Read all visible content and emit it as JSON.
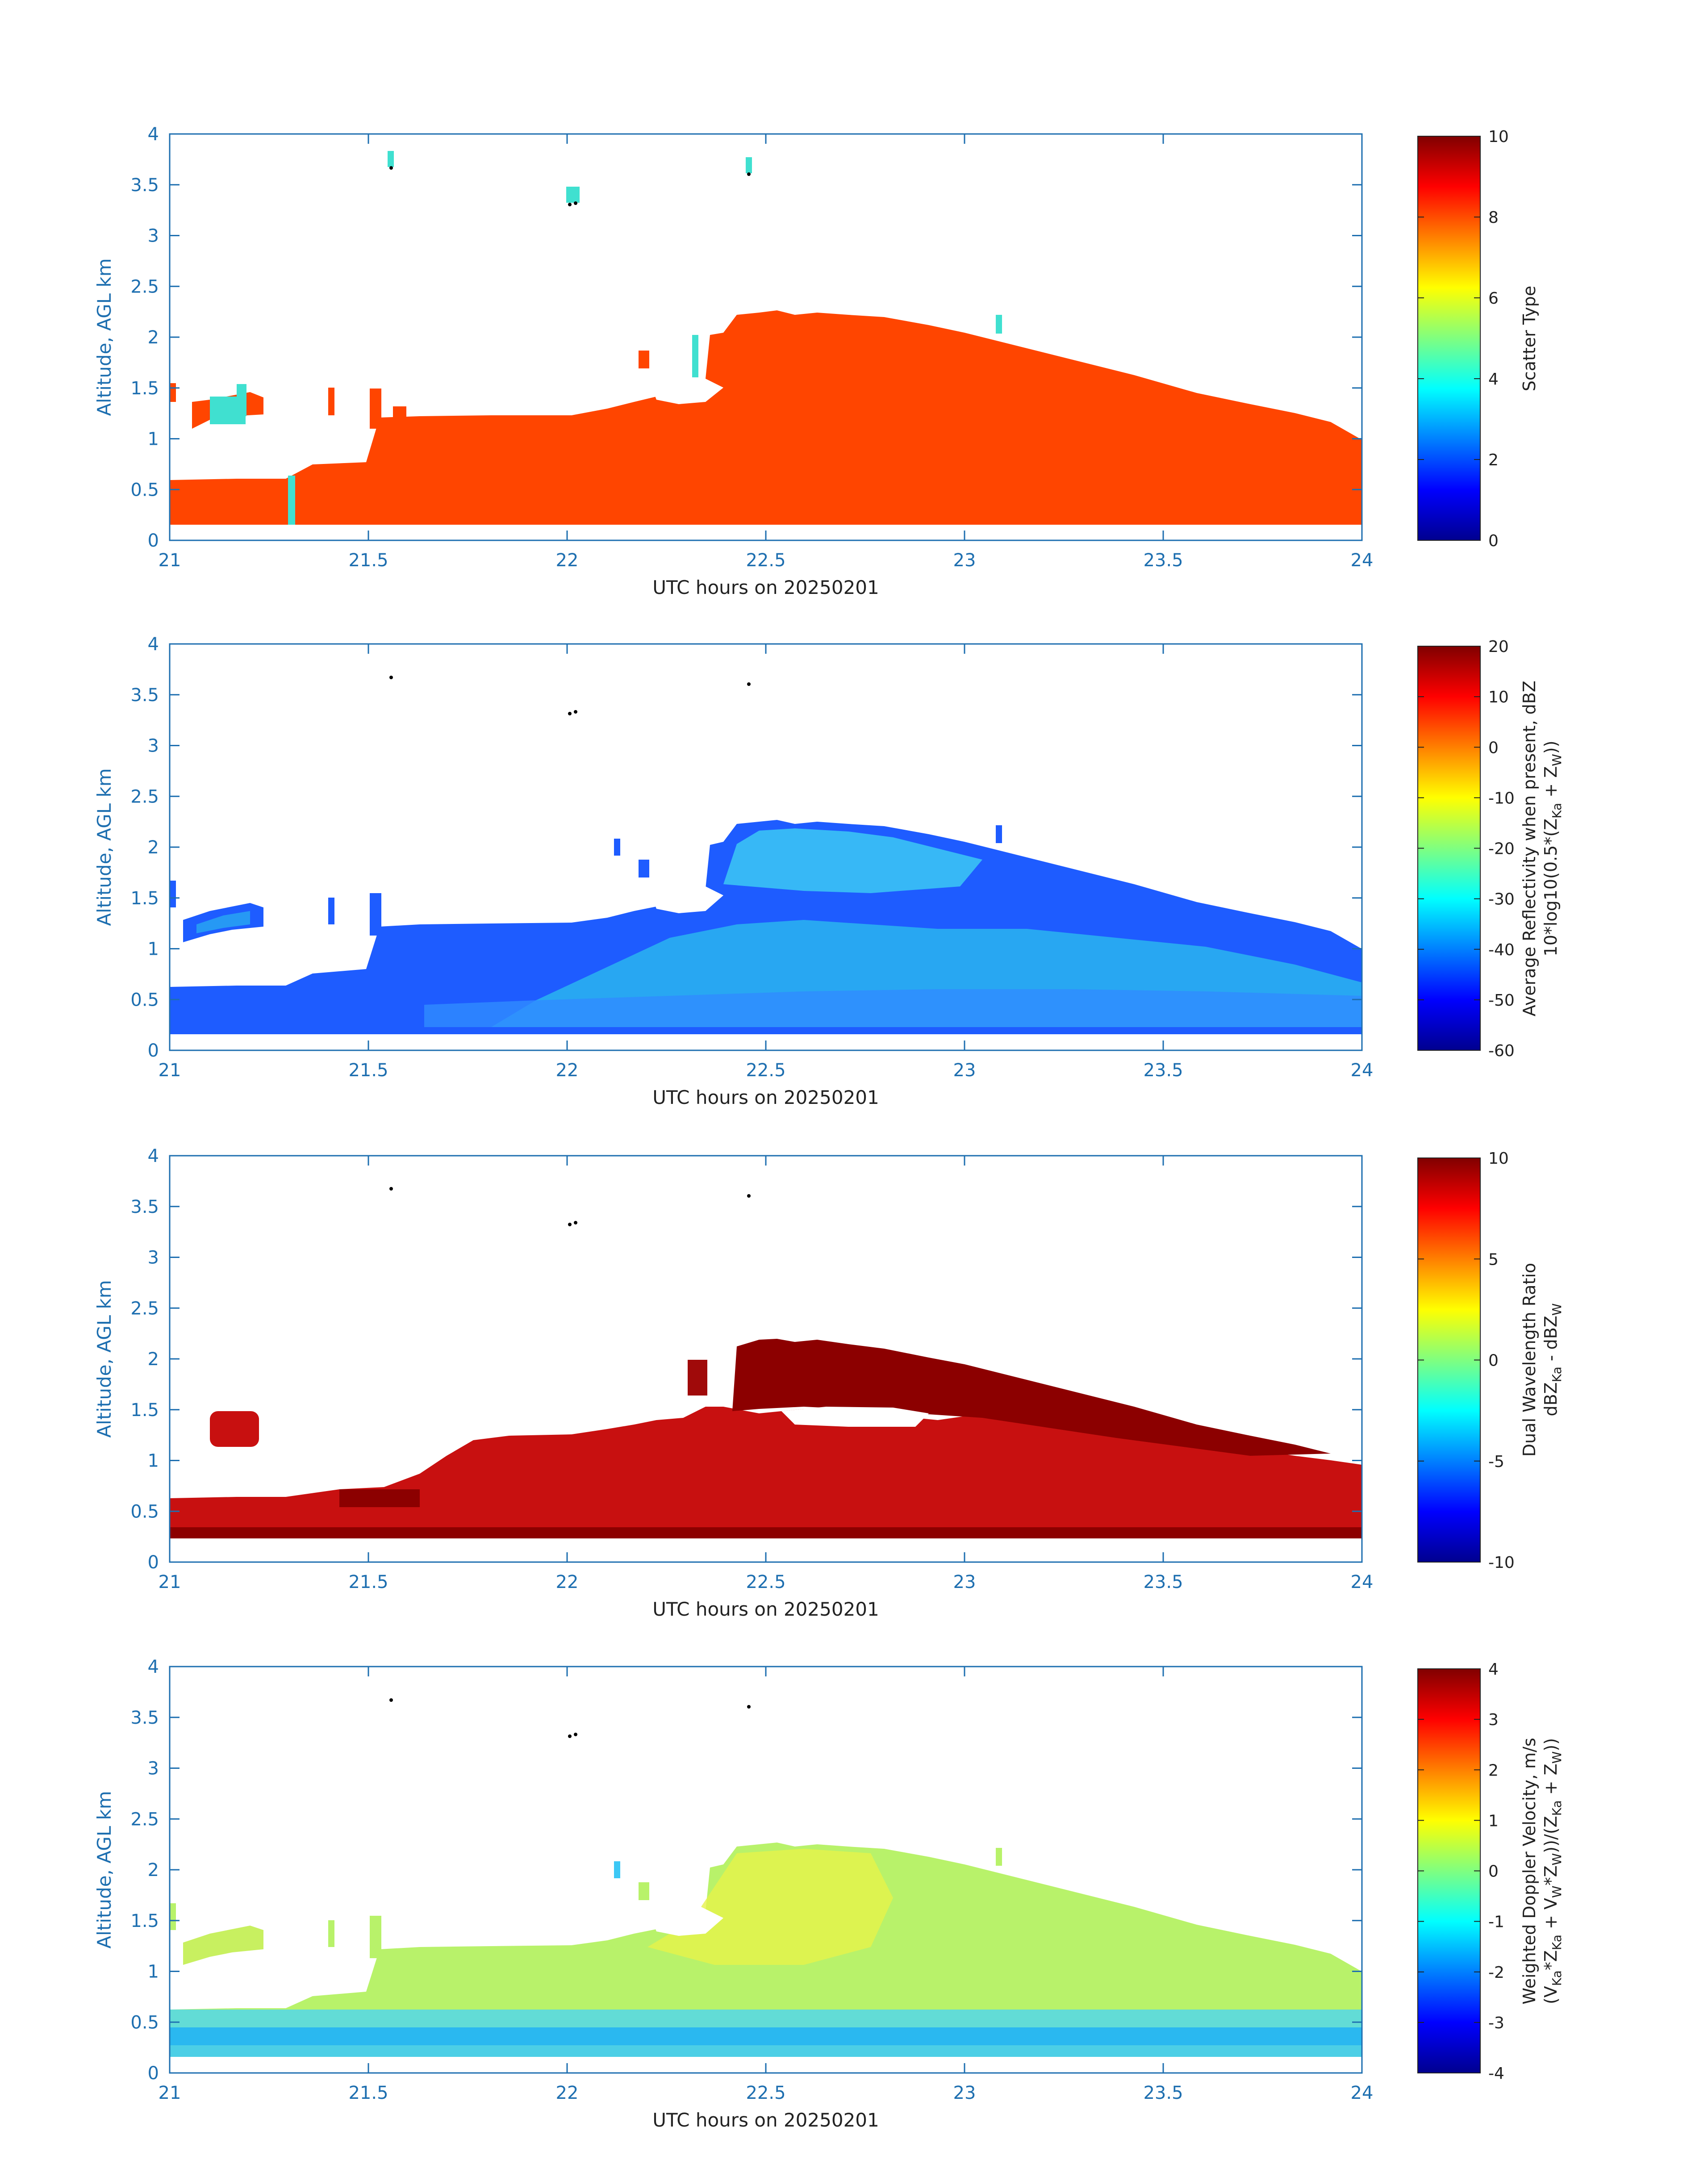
{
  "figure": {
    "xlabel": "UTC hours on 20250201",
    "ylabel": "Altitude, AGL km",
    "xticks": [
      "21",
      "21.5",
      "22",
      "22.5",
      "23",
      "23.5",
      "24"
    ],
    "yticks": [
      "0",
      "0.5",
      "1",
      "1.5",
      "2",
      "2.5",
      "3",
      "3.5",
      "4"
    ],
    "colors": {
      "axis": "#1e6fb0",
      "text": "#222222"
    }
  },
  "chart_data": [
    {
      "type": "heatmap",
      "id": "scatter-type",
      "xlim": [
        21,
        24
      ],
      "ylim": [
        0,
        4
      ],
      "colorbar": {
        "label": "Scatter Type",
        "range": [
          0,
          10
        ],
        "ticks": [
          "0",
          "2",
          "4",
          "6",
          "8",
          "10"
        ]
      },
      "notes": "Mostly value ~8 (orange) cloud region, scattered ~4 (cyan) pixels"
    },
    {
      "type": "heatmap",
      "id": "reflectivity",
      "xlim": [
        21,
        24
      ],
      "ylim": [
        0,
        4
      ],
      "colorbar": {
        "label_line1": "Average Reflectivity when present, dBZ",
        "label_line2": "10*log10(0.5*(Z",
        "label_sub_ka": "Ka",
        "label_plus": " + Z",
        "label_sub_w": "W",
        "label_close": "))",
        "range": [
          -60,
          20
        ],
        "ticks": [
          "-60",
          "-50",
          "-40",
          "-30",
          "-20",
          "-10",
          "0",
          "10",
          "20"
        ]
      }
    },
    {
      "type": "heatmap",
      "id": "dual-wavelength-ratio",
      "xlim": [
        21,
        24
      ],
      "ylim": [
        0,
        4
      ],
      "colorbar": {
        "label_line1": "Dual Wavelength Ratio",
        "label_line2_a": "dBZ",
        "label_sub_ka": "Ka",
        "label_mid": " - dBZ",
        "label_sub_w": "W",
        "range": [
          -10,
          10
        ],
        "ticks": [
          "-10",
          "-5",
          "0",
          "5",
          "10"
        ]
      }
    },
    {
      "type": "heatmap",
      "id": "doppler-velocity",
      "xlim": [
        21,
        24
      ],
      "ylim": [
        0,
        4
      ],
      "colorbar": {
        "label_line1": "Weighted Doppler Velocity, m/s",
        "label_line2": "(V",
        "sub_ka": "Ka",
        "p1": "*Z",
        "p2": " + V",
        "sub_w": "W",
        "p3": "*Z",
        "p4": "))/(Z",
        "p5": " + Z",
        "p6": "))",
        "range": [
          -4,
          4
        ],
        "ticks": [
          "-4",
          "-3",
          "-2",
          "-1",
          "0",
          "1",
          "2",
          "3",
          "4"
        ]
      }
    }
  ]
}
